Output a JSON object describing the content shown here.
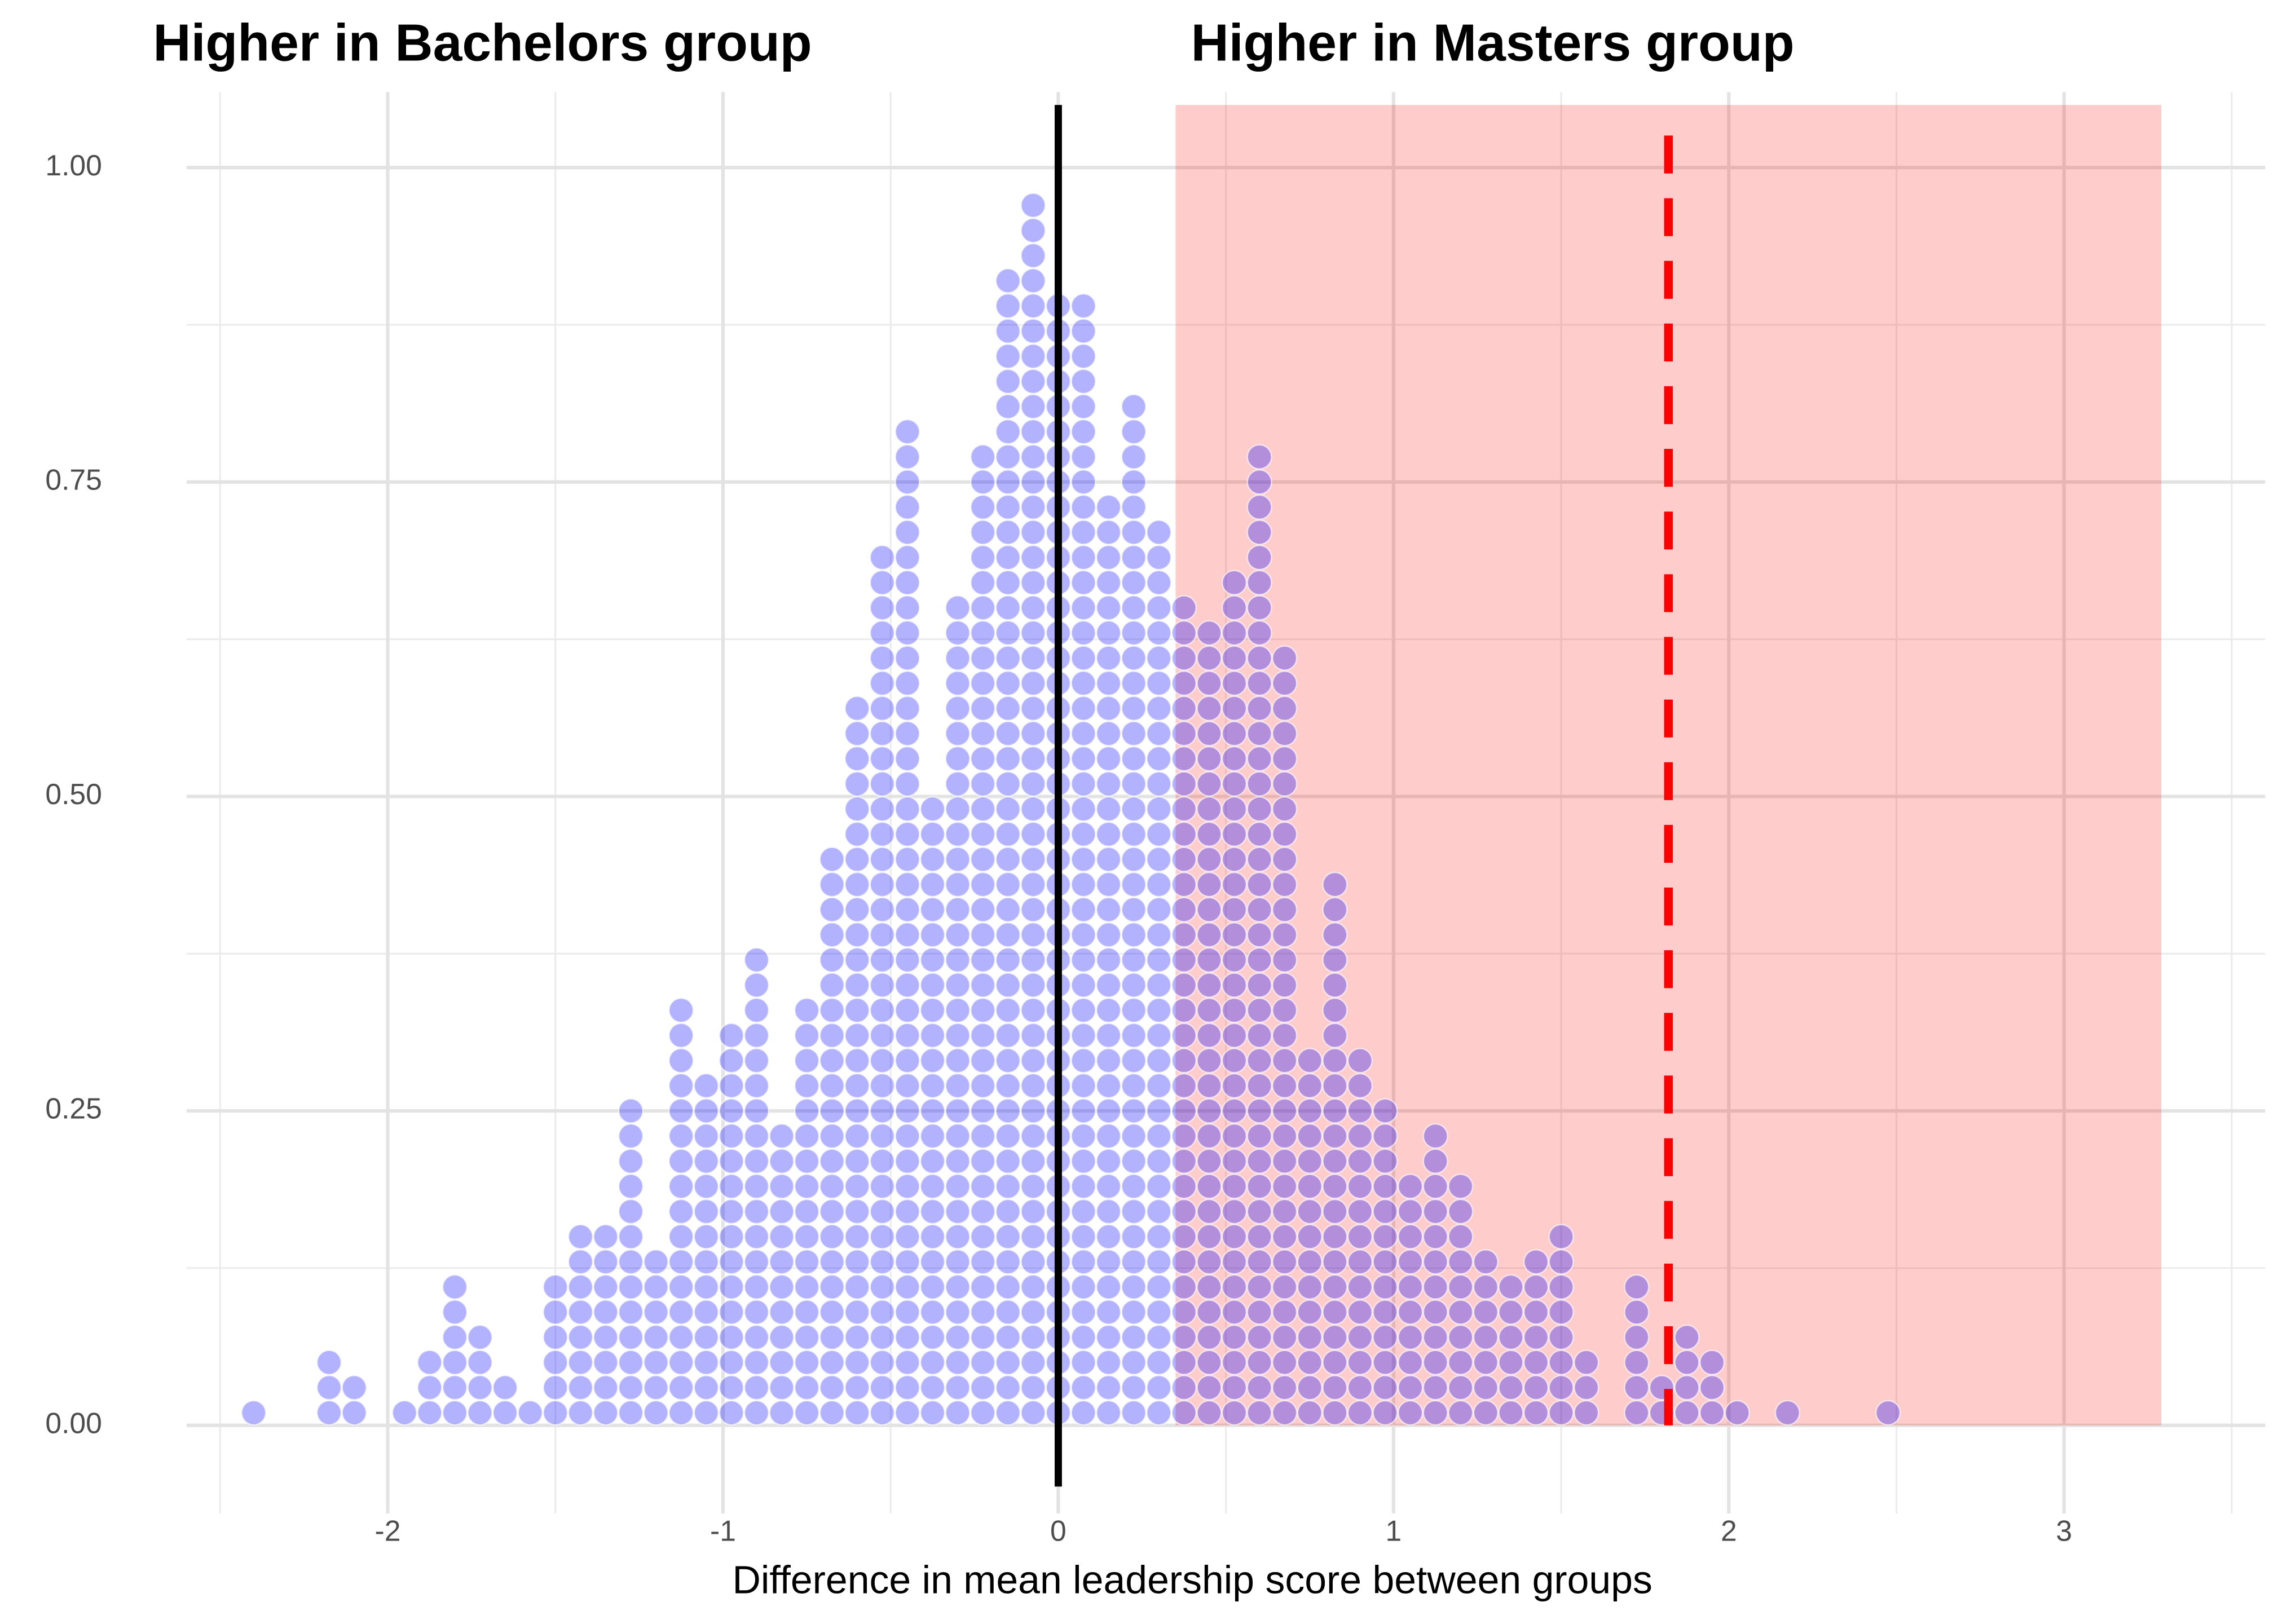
{
  "chart_data": {
    "type": "dotplot",
    "annotations": [
      "Higher in Bachelors group",
      "Higher in Masters group"
    ],
    "x_label": "Difference in mean leadership score between groups",
    "x": [
      -2.4,
      -2.175,
      -2.1,
      -1.95,
      -1.875,
      -1.8,
      -1.725,
      -1.65,
      -1.575,
      -1.5,
      -1.425,
      -1.35,
      -1.275,
      -1.2,
      -1.125,
      -1.05,
      -0.975,
      -0.9,
      -0.825,
      -0.75,
      -0.675,
      -0.6,
      -0.525,
      -0.45,
      -0.375,
      -0.3,
      -0.225,
      -0.15,
      -0.075,
      0,
      0.075,
      0.15,
      0.225,
      0.3,
      0.375,
      0.45,
      0.525,
      0.6,
      0.675,
      0.75,
      0.825,
      0.9,
      0.975,
      1.05,
      1.125,
      1.2,
      1.275,
      1.35,
      1.425,
      1.5,
      1.575,
      1.725,
      1.8,
      1.875,
      1.95,
      2.025,
      2.175,
      2.475
    ],
    "values": [
      0.02,
      0.06,
      0.04,
      0.02,
      0.06,
      0.12,
      0.08,
      0.04,
      0.02,
      0.12,
      0.16,
      0.16,
      0.26,
      0.14,
      0.34,
      0.28,
      0.32,
      0.38,
      0.24,
      0.34,
      0.46,
      0.58,
      0.7,
      0.8,
      0.5,
      0.66,
      0.78,
      0.92,
      0.98,
      0.9,
      0.9,
      0.74,
      0.82,
      0.72,
      0.66,
      0.64,
      0.68,
      0.78,
      0.62,
      0.3,
      0.44,
      0.3,
      0.26,
      0.2,
      0.24,
      0.2,
      0.14,
      0.12,
      0.14,
      0.16,
      0.06,
      0.12,
      0.04,
      0.08,
      0.06,
      0.02,
      0.02,
      0.02
    ],
    "dot_height": 0.02,
    "color": "#0000ff",
    "shade": {
      "from": 0.35,
      "to": 3.29,
      "color": "#ff0000"
    },
    "zero_line": 0,
    "reference_line": 1.82,
    "reference_color": "#ff0000",
    "xlim": [
      -2.6,
      3.6
    ],
    "ylim": [
      -0.07,
      1.06
    ],
    "xticks": [
      -2,
      -1,
      0,
      1,
      2,
      3
    ],
    "xminor": [
      -2.5,
      -1.5,
      -0.5,
      0.5,
      1.5,
      2.5,
      3.5
    ],
    "yticks": [
      {
        "value": 0,
        "label": "0.00"
      },
      {
        "value": 0.25,
        "label": "0.25"
      },
      {
        "value": 0.5,
        "label": "0.50"
      },
      {
        "value": 0.75,
        "label": "0.75"
      },
      {
        "value": 1,
        "label": "1.00"
      }
    ],
    "yminor": [
      0.125,
      0.375,
      0.625,
      0.875
    ],
    "grid": true
  }
}
